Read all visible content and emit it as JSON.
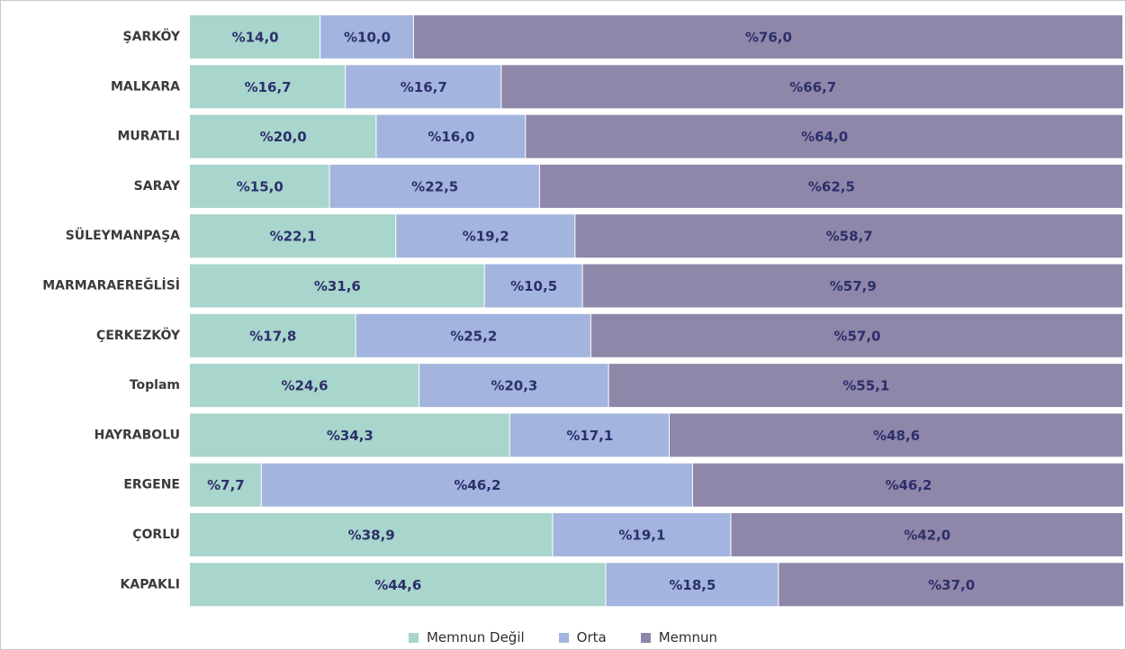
{
  "chart_data": {
    "type": "bar",
    "orientation": "horizontal",
    "stacked": true,
    "percent_stacked": true,
    "categories": [
      "ŞARKÖY",
      "MALKARA",
      "MURATLI",
      "SARAY",
      "SÜLEYMANPAŞA",
      "MARMARAEREĞLİSİ",
      "ÇERKEZKÖY",
      "Toplam",
      "HAYRABOLU",
      "ERGENE",
      "ÇORLU",
      "KAPAKLI"
    ],
    "series": [
      {
        "name": "Memnun Değil",
        "color": "#a8d5cc",
        "values": [
          14.0,
          16.7,
          20.0,
          15.0,
          22.1,
          31.6,
          17.8,
          24.6,
          34.3,
          7.7,
          38.9,
          44.6
        ],
        "labels": [
          "%14,0",
          "%16,7",
          "%20,0",
          "%15,0",
          "%22,1",
          "%31,6",
          "%17,8",
          "%24,6",
          "%34,3",
          "%7,7",
          "%38,9",
          "%44,6"
        ]
      },
      {
        "name": "Orta",
        "color": "#a3b4de",
        "values": [
          10.0,
          16.7,
          16.0,
          22.5,
          19.2,
          10.5,
          25.2,
          20.3,
          17.1,
          46.2,
          19.1,
          18.5
        ],
        "labels": [
          "%10,0",
          "%16,7",
          "%16,0",
          "%22,5",
          "%19,2",
          "%10,5",
          "%25,2",
          "%20,3",
          "%17,1",
          "%46,2",
          "%19,1",
          "%18,5"
        ]
      },
      {
        "name": "Memnun",
        "color": "#8f87a9",
        "values": [
          76.0,
          66.7,
          64.0,
          62.5,
          58.7,
          57.9,
          57.0,
          55.1,
          48.6,
          46.2,
          42.0,
          37.0
        ],
        "labels": [
          "%76,0",
          "%66,7",
          "%64,0",
          "%62,5",
          "%58,7",
          "%57,9",
          "%57,0",
          "%55,1",
          "%48,6",
          "%46,2",
          "%42,0",
          "%37,0"
        ]
      }
    ],
    "title": "",
    "xlabel": "",
    "ylabel": "",
    "xlim": [
      0,
      100
    ],
    "grid": false,
    "legend_position": "bottom-center"
  }
}
